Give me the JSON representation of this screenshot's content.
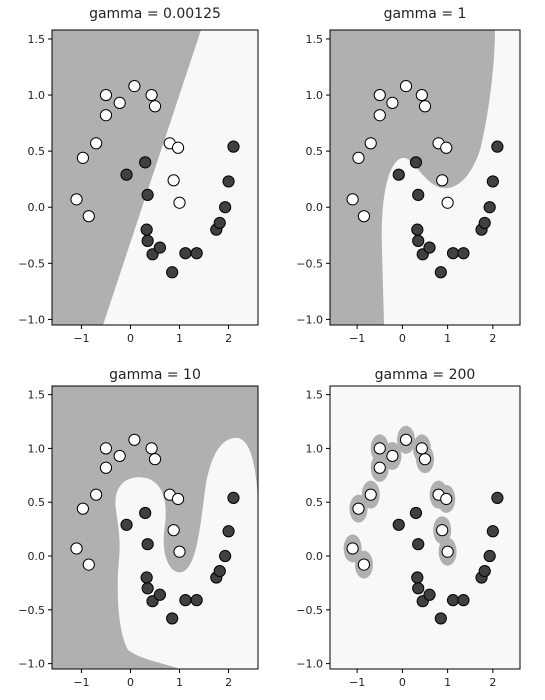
{
  "chart_data": [
    {
      "type": "scatter",
      "title": "gamma = 0.00125",
      "xlim": [
        -1.6,
        2.6
      ],
      "ylim": [
        -1.05,
        1.58
      ],
      "xticks": [
        -1,
        0,
        1,
        2
      ],
      "yticks": [
        -1.0,
        -0.5,
        0.0,
        0.5,
        1.0,
        1.5
      ],
      "decision_region": "linear"
    },
    {
      "type": "scatter",
      "title": "gamma = 1",
      "xlim": [
        -1.6,
        2.6
      ],
      "ylim": [
        -1.05,
        1.58
      ],
      "xticks": [
        -1,
        0,
        1,
        2
      ],
      "yticks": [
        -1.0,
        -0.5,
        0.0,
        0.5,
        1.0,
        1.5
      ],
      "decision_region": "smooth curve"
    },
    {
      "type": "scatter",
      "title": "gamma = 10",
      "xlim": [
        -1.6,
        2.6
      ],
      "ylim": [
        -1.05,
        1.58
      ],
      "xticks": [
        -1,
        0,
        1,
        2
      ],
      "yticks": [
        -1.0,
        -0.5,
        0.0,
        0.5,
        1.0,
        1.5
      ],
      "decision_region": "moon shaped"
    },
    {
      "type": "scatter",
      "title": "gamma = 200",
      "xlim": [
        -1.6,
        2.6
      ],
      "ylim": [
        -1.05,
        1.58
      ],
      "xticks": [
        -1,
        0,
        1,
        2
      ],
      "yticks": [
        -1.0,
        -0.5,
        0.0,
        0.5,
        1.0,
        1.5
      ],
      "decision_region": "islands around points"
    }
  ],
  "points": {
    "class0": [
      [
        -1.1,
        0.07
      ],
      [
        -0.97,
        0.44
      ],
      [
        -0.7,
        0.57
      ],
      [
        -0.85,
        -0.08
      ],
      [
        -0.5,
        1.0
      ],
      [
        -0.5,
        0.82
      ],
      [
        -0.22,
        0.93
      ],
      [
        0.08,
        1.08
      ],
      [
        0.43,
        1.0
      ],
      [
        0.5,
        0.9
      ],
      [
        0.8,
        0.57
      ],
      [
        0.97,
        0.53
      ],
      [
        0.88,
        0.24
      ],
      [
        1.0,
        0.04
      ]
    ],
    "class1": [
      [
        -0.08,
        0.29
      ],
      [
        0.3,
        0.4
      ],
      [
        0.35,
        0.11
      ],
      [
        0.33,
        -0.2
      ],
      [
        0.35,
        -0.3
      ],
      [
        0.45,
        -0.42
      ],
      [
        0.6,
        -0.36
      ],
      [
        0.85,
        -0.58
      ],
      [
        1.12,
        -0.41
      ],
      [
        1.35,
        -0.41
      ],
      [
        1.75,
        -0.2
      ],
      [
        1.82,
        -0.14
      ],
      [
        1.93,
        0.0
      ],
      [
        2.0,
        0.23
      ],
      [
        2.1,
        0.54
      ]
    ]
  },
  "colors": {
    "region_dark": "#b0b0b0",
    "region_light": "#f8f8f8",
    "class0_fill": "#ffffff",
    "class1_fill": "#404040",
    "marker_edge": "#000000"
  }
}
